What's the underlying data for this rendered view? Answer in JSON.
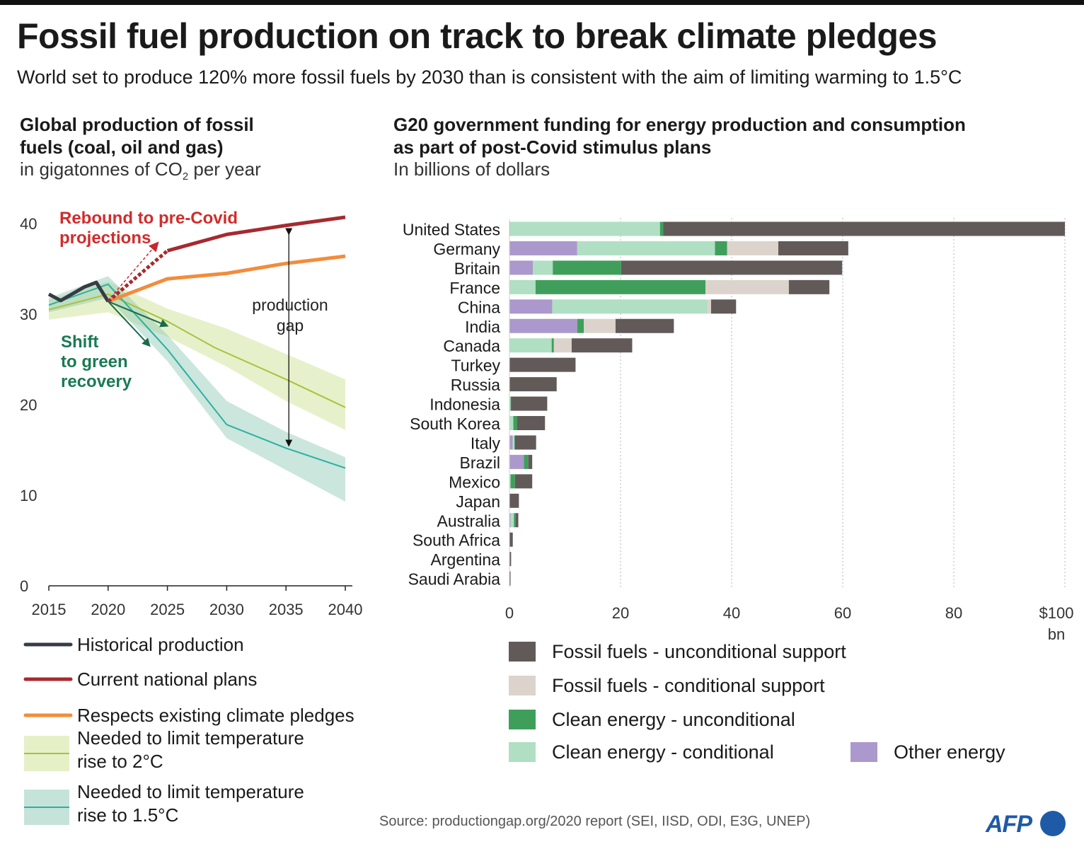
{
  "header": {
    "title": "Fossil fuel production on track to break climate pledges",
    "subtitle": "World set to produce 120% more fossil fuels by 2030 than is consistent with the aim of limiting warming to 1.5°C"
  },
  "left_panel": {
    "title_line1": "Global production of fossil",
    "title_line2": "fuels (coal, oil and gas)",
    "unit_pre": "in gigatonnes of CO",
    "unit_sub": "2",
    "unit_post": " per year"
  },
  "right_panel": {
    "title_line1": "G20 government funding for energy production and consumption",
    "title_line2": "as part of post-Covid stimulus plans",
    "unit": "In billions of dollars"
  },
  "chart_data": [
    {
      "type": "line",
      "title": "Global production of fossil fuels (coal, oil and gas)",
      "ylabel": "in gigatonnes of CO2 per year",
      "xlim": [
        2015,
        2040
      ],
      "ylim": [
        0,
        42
      ],
      "x_ticks": [
        "2015",
        "2020",
        "2025",
        "2030",
        "2035",
        "2040"
      ],
      "y_ticks": [
        "0",
        "10",
        "20",
        "30",
        "40"
      ],
      "grid": false,
      "series": [
        {
          "name": "Historical production",
          "color": "#353c45",
          "points": [
            [
              2015,
              32.2
            ],
            [
              2016,
              31.5
            ],
            [
              2018,
              33.0
            ],
            [
              2019,
              33.5
            ],
            [
              2020,
              31.4
            ]
          ]
        },
        {
          "name": "Current national plans",
          "color": "#a62a30",
          "points": [
            [
              2025,
              37.0
            ],
            [
              2030,
              38.8
            ],
            [
              2035,
              39.8
            ],
            [
              2040,
              40.7
            ]
          ]
        },
        {
          "name": "Respects existing climate pledges",
          "color": "#f28c3c",
          "points": [
            [
              2020,
              31.4
            ],
            [
              2025,
              33.9
            ],
            [
              2030,
              34.5
            ],
            [
              2035,
              35.6
            ],
            [
              2040,
              36.4
            ]
          ]
        },
        {
          "name": "Needed to limit temperature rise to 2°C",
          "color": "#a9c23c",
          "points": [
            [
              2015,
              30.5
            ],
            [
              2020,
              32.2
            ],
            [
              2025,
              29.2
            ],
            [
              2029,
              26.3
            ],
            [
              2035,
              22.8
            ],
            [
              2040,
              19.7
            ]
          ],
          "band_upper": [
            [
              2015,
              31.6
            ],
            [
              2020,
              33.6
            ],
            [
              2025,
              30.6
            ],
            [
              2030,
              28.4
            ],
            [
              2035,
              25.6
            ],
            [
              2040,
              22.8
            ]
          ],
          "band_lower": [
            [
              2015,
              29.4
            ],
            [
              2020,
              30.2
            ],
            [
              2025,
              27.5
            ],
            [
              2030,
              24.2
            ],
            [
              2035,
              20.4
            ],
            [
              2040,
              17.2
            ]
          ]
        },
        {
          "name": "Needed to limit temperature rise to 1.5°C",
          "color": "#2bb0a0",
          "points": [
            [
              2015,
              31.0
            ],
            [
              2020,
              33.3
            ],
            [
              2025,
              26.1
            ],
            [
              2030,
              17.8
            ],
            [
              2035,
              15.2
            ],
            [
              2040,
              13.0
            ]
          ],
          "band_upper": [
            [
              2015,
              31.8
            ],
            [
              2020,
              34.2
            ],
            [
              2025,
              27.7
            ],
            [
              2030,
              20.4
            ],
            [
              2035,
              17.0
            ],
            [
              2040,
              14.2
            ]
          ],
          "band_lower": [
            [
              2015,
              30.2
            ],
            [
              2020,
              31.8
            ],
            [
              2025,
              24.8
            ],
            [
              2030,
              16.3
            ],
            [
              2035,
              12.8
            ],
            [
              2040,
              9.3
            ]
          ]
        }
      ],
      "rebound_arrow": {
        "from": [
          2020,
          31.4
        ],
        "to": [
          2025,
          37.0
        ]
      },
      "green_arrows": [
        {
          "from": [
            2020,
            31.4
          ],
          "to": [
            2025,
            28.7
          ]
        },
        {
          "from": [
            2020,
            31.4
          ],
          "to": [
            2023.5,
            26.5
          ]
        }
      ],
      "gap_arrow": {
        "x": 2035,
        "from": 39.8,
        "to": 15.2
      },
      "annotations": {
        "rebound_line1": "Rebound to pre-Covid",
        "rebound_line2": "projections",
        "gap_line1": "production",
        "gap_line2": "gap",
        "shift_line1": "Shift",
        "shift_line2": "to green",
        "shift_line3": "recovery"
      },
      "legend": {
        "historical": "Historical production",
        "current": "Current national plans",
        "pledges": "Respects existing climate pledges",
        "two_deg_line1": "Needed to limit temperature",
        "two_deg_line2": "rise to 2°C",
        "one_five_line1": "Needed to limit temperature",
        "one_five_line2": "rise to 1.5°C"
      }
    },
    {
      "type": "bar",
      "orientation": "horizontal",
      "stacked": true,
      "title": "G20 government funding for energy production and consumption as part of post-Covid stimulus plans",
      "xlabel": "In billions of dollars",
      "xlim": [
        0,
        100
      ],
      "x_ticks": [
        "0",
        "20",
        "40",
        "60",
        "80"
      ],
      "x_last_tick_line1": "$100",
      "x_last_tick_line2": "bn",
      "grid": true,
      "categories": [
        "United States",
        "Germany",
        "Britain",
        "France",
        "China",
        "India",
        "Canada",
        "Turkey",
        "Russia",
        "Indonesia",
        "South Korea",
        "Italy",
        "Brazil",
        "Mexico",
        "Japan",
        "Australia",
        "South Africa",
        "Argentina",
        "Saudi Arabia"
      ],
      "series": [
        {
          "name": "Other energy",
          "color": "#ab98cc",
          "values": [
            0.1,
            12.2,
            4.2,
            0,
            7.7,
            12.2,
            0,
            0,
            0,
            0,
            0,
            0.6,
            2.6,
            0,
            0,
            0.2,
            0,
            0,
            0
          ]
        },
        {
          "name": "Clean energy - conditional",
          "color": "#b0dfc3",
          "values": [
            27.0,
            24.8,
            3.6,
            4.7,
            28.0,
            0,
            7.6,
            0,
            0,
            0.2,
            0.7,
            0.3,
            0,
            0.2,
            0,
            0.6,
            0,
            0,
            0
          ]
        },
        {
          "name": "Clean energy - unconditional",
          "color": "#3f9f5a",
          "values": [
            0.6,
            2.2,
            12.3,
            30.6,
            0,
            1.2,
            0.4,
            0,
            0,
            0.1,
            0.7,
            0.1,
            0.8,
            0.8,
            0,
            0.3,
            0,
            0,
            0
          ]
        },
        {
          "name": "Fossil fuels - conditional support",
          "color": "#dcd4cc",
          "values": [
            0,
            9.2,
            0,
            15.0,
            0.6,
            5.7,
            3.2,
            0,
            0,
            0,
            0,
            0,
            0,
            0,
            0,
            0,
            0,
            0,
            0
          ]
        },
        {
          "name": "Fossil fuels - unconditional support",
          "color": "#625a58",
          "values": [
            72.3,
            12.6,
            39.8,
            7.3,
            4.5,
            10.5,
            10.9,
            11.9,
            8.5,
            6.5,
            5.0,
            3.8,
            0.7,
            3.1,
            1.7,
            0.5,
            0.6,
            0.3,
            0.2
          ]
        }
      ]
    }
  ],
  "footer": {
    "source": "Source: productiongap.org/2020 report (SEI, IISD, ODI, E3G, UNEP)",
    "logo": "AFP"
  },
  "colors": {
    "afp_blue": "#1f5aa6",
    "text": "#1a1a1a",
    "rebound_text": "#d22b2b",
    "shift_text": "#1a7a55"
  }
}
